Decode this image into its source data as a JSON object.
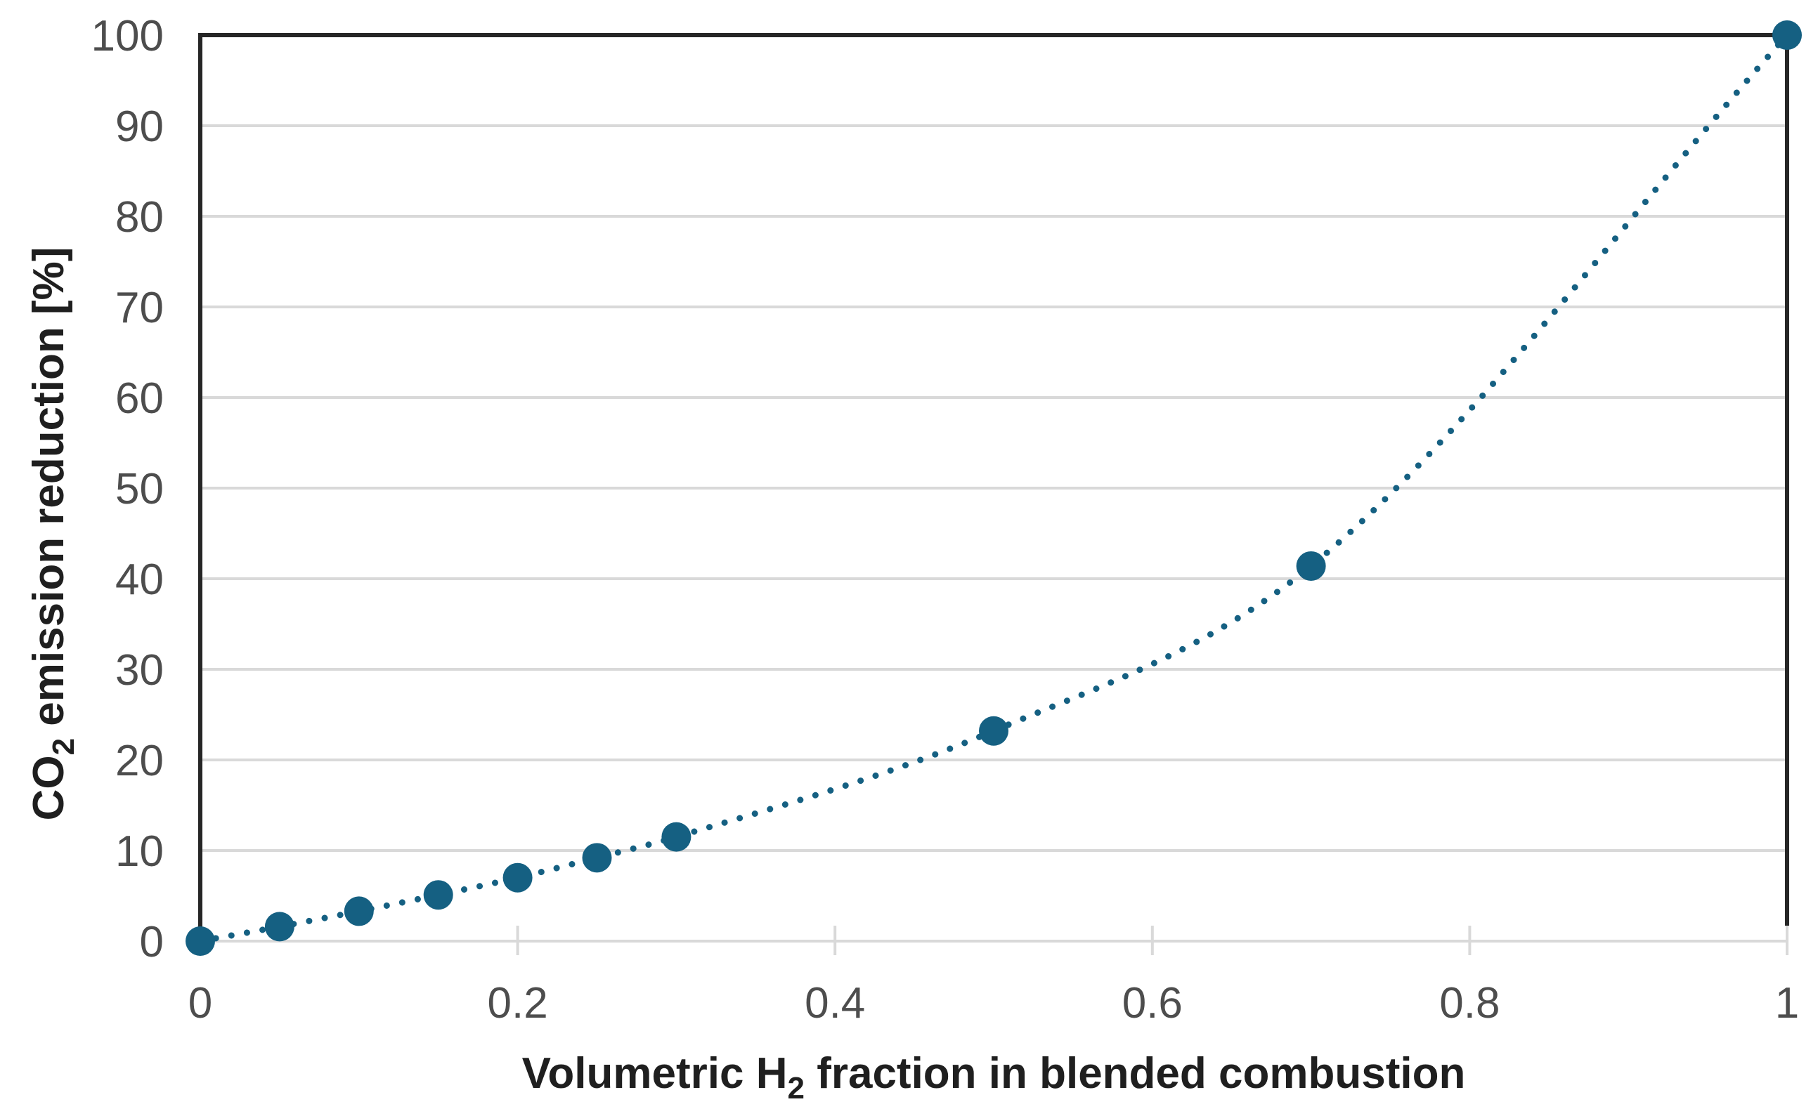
{
  "page": {
    "background": "#FFFFFF"
  },
  "chart_data": {
    "type": "scatter",
    "title": "",
    "xlabel": "Volumetric H2 fraction in blended combustion",
    "xlabel_rich": {
      "pre": "Volumetric H",
      "sub": "2",
      "post": " fraction in blended combustion"
    },
    "ylabel": "CO2 emission reduction [%]",
    "ylabel_rich": {
      "pre": "CO",
      "sub": "2",
      "post": " emission reduction [%]"
    },
    "xlim": [
      0,
      1
    ],
    "ylim": [
      0,
      100
    ],
    "grid": "horizontal-only",
    "legend": "none",
    "trendline": "dotted-curve-through-points",
    "x_ticks": [
      {
        "value": 0,
        "label": "0"
      },
      {
        "value": 0.2,
        "label": "0.2"
      },
      {
        "value": 0.4,
        "label": "0.4"
      },
      {
        "value": 0.6,
        "label": "0.6"
      },
      {
        "value": 0.8,
        "label": "0.8"
      },
      {
        "value": 1,
        "label": "1"
      }
    ],
    "y_ticks": [
      {
        "value": 0,
        "label": "0"
      },
      {
        "value": 10,
        "label": "10"
      },
      {
        "value": 20,
        "label": "20"
      },
      {
        "value": 30,
        "label": "30"
      },
      {
        "value": 40,
        "label": "40"
      },
      {
        "value": 50,
        "label": "50"
      },
      {
        "value": 60,
        "label": "60"
      },
      {
        "value": 70,
        "label": "70"
      },
      {
        "value": 80,
        "label": "80"
      },
      {
        "value": 90,
        "label": "90"
      },
      {
        "value": 100,
        "label": "100"
      }
    ],
    "series": [
      {
        "name": "CO2 emission reduction",
        "marker": "filled-circle",
        "line": "dotted-trend",
        "color": "#156082",
        "points": [
          {
            "x": 0,
            "y": 0
          },
          {
            "x": 0.05,
            "y": 1.6
          },
          {
            "x": 0.1,
            "y": 3.3
          },
          {
            "x": 0.15,
            "y": 5.1
          },
          {
            "x": 0.2,
            "y": 7.0
          },
          {
            "x": 0.25,
            "y": 9.2
          },
          {
            "x": 0.3,
            "y": 11.5
          },
          {
            "x": 0.5,
            "y": 23.2
          },
          {
            "x": 0.7,
            "y": 41.4
          },
          {
            "x": 1,
            "y": 100
          }
        ]
      }
    ],
    "colors": {
      "series": "#156082",
      "gridline": "#D9D9D9",
      "axis_frame": "#262626",
      "tick_mark": "#D9D9D9",
      "tick_label": "#4D4D4D",
      "axis_title": "#1F1F1F",
      "background": "#FFFFFF"
    }
  }
}
